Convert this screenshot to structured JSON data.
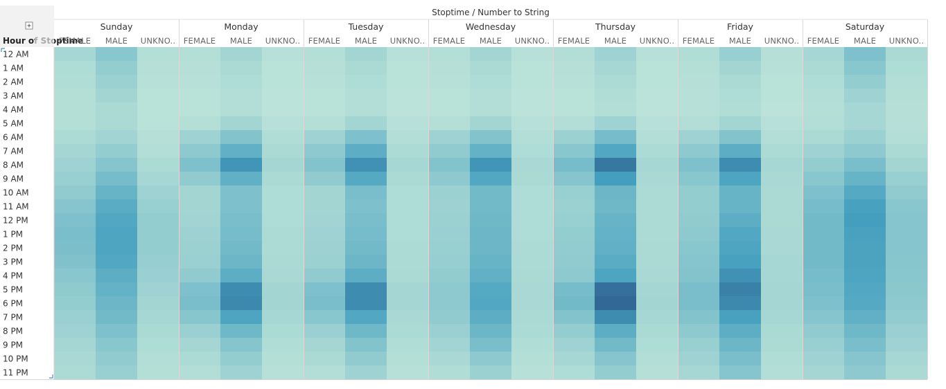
{
  "view": {
    "column_header_title": "Stoptime / Number to String",
    "row_header_title": "Hour of Stoptime",
    "expand_icon": "plus-box-icon"
  },
  "chart_data": {
    "type": "heatmap",
    "title": "Stoptime / Number to String",
    "xlabel": "",
    "ylabel": "Hour of Stoptime",
    "days": [
      "Sunday",
      "Monday",
      "Tuesday",
      "Wednesday",
      "Thursday",
      "Friday",
      "Saturday"
    ],
    "genders": [
      "FEMALE",
      "MALE",
      "UNKNO.."
    ],
    "hours": [
      "12 AM",
      "1 AM",
      "2 AM",
      "3 AM",
      "4 AM",
      "5 AM",
      "6 AM",
      "7 AM",
      "8 AM",
      "9 AM",
      "10 AM",
      "11 AM",
      "12 PM",
      "1 PM",
      "2 PM",
      "3 PM",
      "4 PM",
      "5 PM",
      "6 PM",
      "7 PM",
      "8 PM",
      "9 PM",
      "10 PM",
      "11 PM"
    ],
    "value_scale": "relative intensity 0-100",
    "color_range": [
      "#bde4d9",
      "#2b5788"
    ],
    "values": {
      "Sunday": {
        "FEMALE": [
          12,
          8,
          7,
          5,
          5,
          5,
          9,
          13,
          16,
          20,
          24,
          30,
          34,
          36,
          35,
          33,
          28,
          25,
          22,
          19,
          16,
          13,
          11,
          9
        ],
        "MALE": [
          28,
          22,
          18,
          14,
          10,
          10,
          15,
          22,
          30,
          38,
          46,
          54,
          58,
          60,
          60,
          58,
          52,
          48,
          44,
          40,
          34,
          28,
          24,
          20
        ],
        "UNKNO..": [
          5,
          4,
          3,
          2,
          2,
          2,
          4,
          6,
          9,
          12,
          16,
          20,
          22,
          22,
          22,
          21,
          19,
          16,
          14,
          12,
          10,
          8,
          6,
          5
        ]
      },
      "Monday": {
        "FEMALE": [
          5,
          4,
          3,
          2,
          2,
          5,
          16,
          26,
          34,
          24,
          14,
          14,
          15,
          17,
          18,
          19,
          24,
          34,
          36,
          29,
          19,
          13,
          9,
          6
        ],
        "MALE": [
          14,
          10,
          8,
          6,
          6,
          14,
          32,
          50,
          70,
          50,
          34,
          34,
          36,
          38,
          40,
          44,
          52,
          74,
          76,
          60,
          42,
          30,
          22,
          16
        ],
        "UNKNO..": [
          3,
          2,
          2,
          1,
          1,
          3,
          7,
          10,
          13,
          10,
          8,
          8,
          8,
          9,
          9,
          10,
          11,
          14,
          14,
          12,
          9,
          7,
          5,
          3
        ]
      },
      "Tuesday": {
        "FEMALE": [
          5,
          4,
          3,
          2,
          2,
          5,
          16,
          26,
          32,
          24,
          14,
          14,
          15,
          16,
          17,
          18,
          24,
          34,
          36,
          28,
          19,
          13,
          10,
          6
        ],
        "MALE": [
          14,
          10,
          8,
          6,
          6,
          14,
          34,
          52,
          72,
          56,
          36,
          34,
          36,
          38,
          40,
          44,
          52,
          74,
          74,
          58,
          42,
          32,
          24,
          16
        ],
        "UNKNO..": [
          3,
          2,
          2,
          1,
          1,
          3,
          6,
          9,
          12,
          10,
          8,
          8,
          8,
          8,
          9,
          9,
          10,
          13,
          13,
          11,
          9,
          7,
          5,
          3
        ]
      },
      "Wednesday": {
        "FEMALE": [
          5,
          4,
          3,
          2,
          2,
          5,
          16,
          24,
          32,
          26,
          18,
          17,
          18,
          19,
          20,
          21,
          23,
          26,
          26,
          24,
          19,
          15,
          11,
          7
        ],
        "MALE": [
          14,
          10,
          8,
          6,
          6,
          14,
          32,
          48,
          70,
          58,
          40,
          40,
          42,
          44,
          44,
          46,
          50,
          56,
          58,
          52,
          44,
          36,
          26,
          18
        ],
        "UNKNO..": [
          3,
          2,
          2,
          1,
          1,
          3,
          6,
          8,
          11,
          10,
          8,
          8,
          8,
          8,
          9,
          9,
          10,
          11,
          11,
          10,
          9,
          7,
          5,
          3
        ]
      },
      "Thursday": {
        "FEMALE": [
          6,
          4,
          3,
          2,
          2,
          6,
          18,
          28,
          38,
          30,
          20,
          18,
          20,
          22,
          23,
          24,
          26,
          38,
          40,
          32,
          22,
          16,
          12,
          8
        ],
        "MALE": [
          16,
          12,
          9,
          7,
          6,
          16,
          38,
          58,
          84,
          66,
          44,
          42,
          46,
          48,
          50,
          54,
          60,
          88,
          92,
          74,
          52,
          40,
          30,
          22
        ],
        "UNKNO..": [
          3,
          2,
          2,
          1,
          1,
          3,
          6,
          9,
          12,
          11,
          9,
          9,
          9,
          9,
          10,
          10,
          11,
          13,
          14,
          12,
          10,
          8,
          6,
          4
        ]
      },
      "Friday": {
        "FEMALE": [
          7,
          5,
          4,
          3,
          3,
          6,
          16,
          26,
          34,
          28,
          22,
          22,
          24,
          26,
          28,
          30,
          32,
          36,
          36,
          32,
          26,
          20,
          16,
          12
        ],
        "MALE": [
          20,
          14,
          10,
          8,
          7,
          14,
          32,
          52,
          74,
          60,
          46,
          46,
          52,
          58,
          60,
          64,
          72,
          80,
          76,
          64,
          52,
          44,
          36,
          30
        ],
        "UNKNO..": [
          4,
          3,
          2,
          2,
          1,
          3,
          6,
          9,
          12,
          11,
          10,
          10,
          10,
          11,
          11,
          12,
          12,
          13,
          13,
          12,
          10,
          9,
          7,
          6
        ]
      },
      "Saturday": {
        "FEMALE": [
          12,
          10,
          8,
          6,
          5,
          6,
          10,
          16,
          22,
          28,
          34,
          38,
          40,
          40,
          40,
          40,
          38,
          36,
          34,
          30,
          24,
          20,
          16,
          13
        ],
        "MALE": [
          34,
          28,
          22,
          16,
          12,
          12,
          18,
          26,
          36,
          46,
          56,
          64,
          66,
          64,
          62,
          62,
          60,
          58,
          56,
          50,
          42,
          36,
          30,
          26
        ],
        "UNKNO..": [
          10,
          8,
          6,
          5,
          4,
          4,
          6,
          10,
          14,
          20,
          24,
          28,
          30,
          30,
          30,
          29,
          28,
          27,
          26,
          23,
          19,
          16,
          12,
          10
        ]
      }
    }
  }
}
